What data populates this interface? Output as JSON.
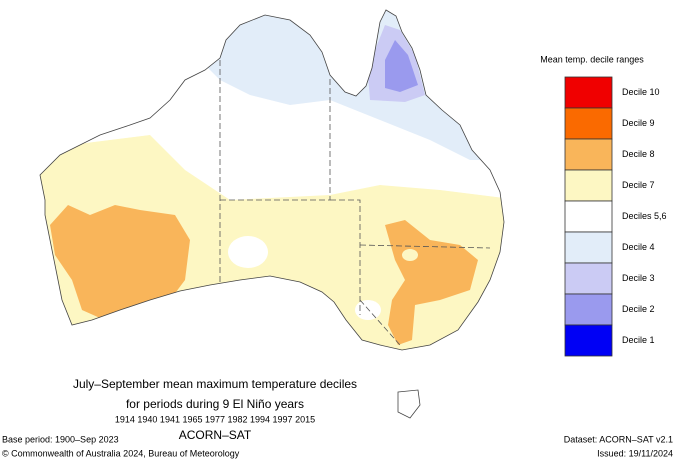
{
  "legend": {
    "title": "Mean temp. decile ranges",
    "items": [
      {
        "label": "Decile 10",
        "color": "#f00000"
      },
      {
        "label": "Decile 9",
        "color": "#fa6a00"
      },
      {
        "label": "Decile 8",
        "color": "#f9b55a"
      },
      {
        "label": "Decile 7",
        "color": "#fdf7c3"
      },
      {
        "label": "Deciles 5,6",
        "color": "#ffffff"
      },
      {
        "label": "Decile 4",
        "color": "#e2edf9"
      },
      {
        "label": "Decile 3",
        "color": "#cbcbf4"
      },
      {
        "label": "Decile 2",
        "color": "#9a9aee"
      },
      {
        "label": "Decile 1",
        "color": "#0000f5"
      }
    ]
  },
  "caption": {
    "line1": "July–September mean maximum temperature deciles",
    "line2": "for periods during 9 El Niño years",
    "years": "1914 1940 1941 1965 1977 1982 1994 1997 2015",
    "product": "ACORN–SAT"
  },
  "footer": {
    "base_period": "Base period: 1900–Sep 2023",
    "copyright": "© Commonwealth of Australia 2024, Bureau of Meteorology",
    "dataset": "Dataset: ACORN–SAT v2.1",
    "issued": "Issued: 19/11/2024"
  }
}
